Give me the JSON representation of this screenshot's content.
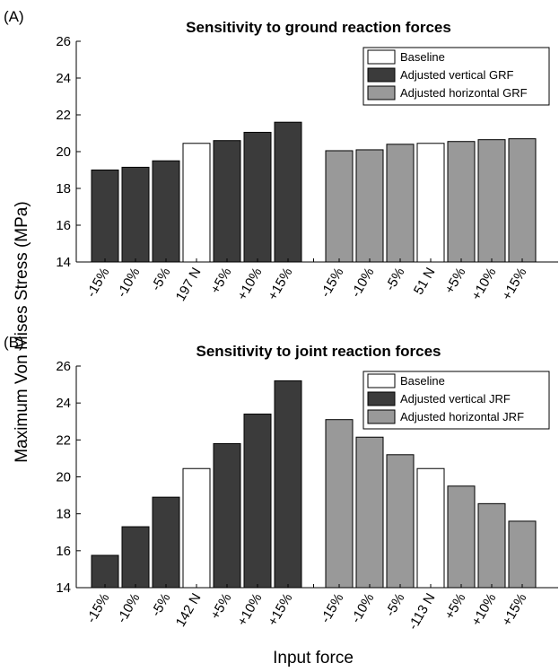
{
  "figure": {
    "ylabel": "Maximum Von Mises Stress (MPa)",
    "xlabel": "Input force"
  },
  "colors": {
    "baseline": "#ffffff",
    "vertical": "#3b3b3b",
    "horizontal": "#999999",
    "stroke": "#000000"
  },
  "chart_data": [
    {
      "type": "bar",
      "panel_label": "(A)",
      "title": "Sensitivity to ground reaction forces",
      "ylim": [
        14,
        26
      ],
      "yticks": [
        "14",
        "16",
        "18",
        "20",
        "22",
        "24",
        "26"
      ],
      "grid": false,
      "legend_position": "top-right",
      "legend": [
        "Baseline",
        "Adjusted vertical GRF",
        "Adjusted horizontal GRF"
      ],
      "groups": [
        {
          "categories": [
            "-15%",
            "-10%",
            "-5%",
            "197 N",
            "+5%",
            "+10%",
            "+15%"
          ],
          "values": [
            19.0,
            19.15,
            19.5,
            20.45,
            20.6,
            21.05,
            21.6
          ],
          "kinds": [
            "vertical",
            "vertical",
            "vertical",
            "baseline",
            "vertical",
            "vertical",
            "vertical"
          ]
        },
        {
          "categories": [
            "-15%",
            "-10%",
            "-5%",
            "51 N",
            "+5%",
            "+10%",
            "+15%"
          ],
          "values": [
            20.05,
            20.1,
            20.4,
            20.45,
            20.55,
            20.65,
            20.7
          ],
          "kinds": [
            "horizontal",
            "horizontal",
            "horizontal",
            "baseline",
            "horizontal",
            "horizontal",
            "horizontal"
          ]
        }
      ]
    },
    {
      "type": "bar",
      "panel_label": "(B)",
      "title": "Sensitivity to joint reaction forces",
      "ylim": [
        14,
        26
      ],
      "yticks": [
        "14",
        "16",
        "18",
        "20",
        "22",
        "24",
        "26"
      ],
      "grid": false,
      "legend_position": "top-right",
      "legend": [
        "Baseline",
        "Adjusted vertical JRF",
        "Adjusted horizontal JRF"
      ],
      "groups": [
        {
          "categories": [
            "-15%",
            "-10%",
            "-5%",
            "142 N",
            "+5%",
            "+10%",
            "+15%"
          ],
          "values": [
            15.75,
            17.3,
            18.9,
            20.45,
            21.8,
            23.4,
            25.2
          ],
          "kinds": [
            "vertical",
            "vertical",
            "vertical",
            "baseline",
            "vertical",
            "vertical",
            "vertical"
          ]
        },
        {
          "categories": [
            "-15%",
            "-10%",
            "-5%",
            "-113 N",
            "+5%",
            "+10%",
            "+15%"
          ],
          "values": [
            23.1,
            22.15,
            21.2,
            20.45,
            19.5,
            18.55,
            17.6
          ],
          "kinds": [
            "horizontal",
            "horizontal",
            "horizontal",
            "baseline",
            "horizontal",
            "horizontal",
            "horizontal"
          ]
        }
      ]
    }
  ]
}
